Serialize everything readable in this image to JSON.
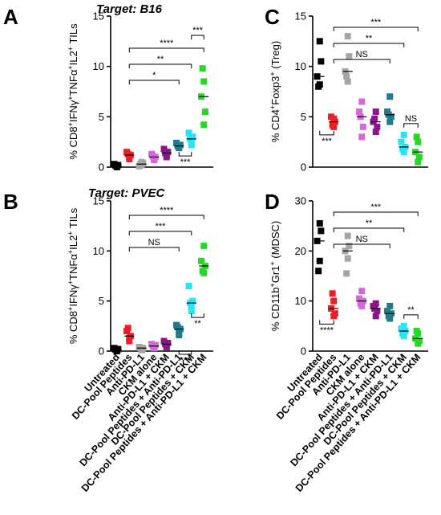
{
  "categories": [
    "Untreated",
    "DC-Pool Peptides",
    "Anti-PD-L1",
    "CKM alone",
    "Anti-PD-L1 + CKM",
    "DC-Pool Peptides + Anti-PD-L1",
    "DC-Pool Peptides + CKM",
    "DC-Pool Peptides + Anti-PD-L1 + CKM"
  ],
  "colors": [
    "#000000",
    "#ee1c24",
    "#a5a5a5",
    "#d46ad8",
    "#8b158b",
    "#1e7d8c",
    "#28e4f4",
    "#27d727"
  ],
  "chart_data": [
    {
      "panel": "A",
      "type": "scatter",
      "title": "Target: B16",
      "ylabel_parts": [
        "% CD8",
        "+",
        "IFNγ",
        "+",
        "TNFα",
        "+",
        "IL2",
        "+",
        " TILs"
      ],
      "ylim": [
        0,
        15
      ],
      "yticks": [
        "0",
        "5",
        "10",
        "15"
      ],
      "points": [
        [
          0.1,
          0.2,
          0.3,
          0.0,
          0.15
        ],
        [
          0.8,
          1.2,
          1.5,
          1.0,
          1.3
        ],
        [
          0.2,
          0.4,
          0.1,
          0.5,
          0.3
        ],
        [
          0.8,
          1.0,
          1.3,
          0.7,
          1.1
        ],
        [
          1.2,
          1.5,
          1.8,
          1.0,
          1.4
        ],
        [
          2.0,
          2.2,
          2.4,
          1.9,
          2.1
        ],
        [
          2.5,
          3.0,
          3.4,
          2.2,
          2.8
        ],
        [
          4.2,
          5.5,
          7.0,
          8.5,
          9.8
        ]
      ],
      "brackets": [
        {
          "from": 1,
          "to": 7,
          "label": "****"
        },
        {
          "from": 1,
          "to": 6,
          "label": "**"
        },
        {
          "from": 1,
          "to": 5,
          "label": "*"
        },
        {
          "from": 6,
          "to": 7,
          "label": "***"
        },
        {
          "from": 5,
          "to": 6,
          "label": "***",
          "below": true
        }
      ]
    },
    {
      "panel": "B",
      "type": "scatter",
      "title": "Target: PVEC",
      "ylabel_parts": [
        "% CD8",
        "+",
        "IFNγ",
        "+",
        "TNFα",
        "+",
        "IL2",
        "+",
        " TILs"
      ],
      "ylim": [
        0,
        15
      ],
      "yticks": [
        "0",
        "5",
        "10",
        "15"
      ],
      "points": [
        [
          0.1,
          0.2,
          0.3,
          0.0,
          0.15
        ],
        [
          1.0,
          1.5,
          2.0,
          1.3,
          2.3
        ],
        [
          0.2,
          0.3,
          0.4,
          0.1,
          0.3
        ],
        [
          0.4,
          0.6,
          0.7,
          0.3,
          0.5
        ],
        [
          0.5,
          0.8,
          1.0,
          0.4,
          0.7
        ],
        [
          1.8,
          2.2,
          2.6,
          1.6,
          2.4
        ],
        [
          4.0,
          5.0,
          6.5,
          4.5,
          4.8
        ],
        [
          7.8,
          8.5,
          9.0,
          10.5,
          8.0
        ]
      ],
      "brackets": [
        {
          "from": 1,
          "to": 7,
          "label": "****"
        },
        {
          "from": 1,
          "to": 6,
          "label": "***"
        },
        {
          "from": 1,
          "to": 5,
          "label": "NS"
        },
        {
          "from": 6,
          "to": 7,
          "label": "**",
          "below": true,
          "level": 1
        },
        {
          "from": 5,
          "to": 6,
          "label": "***",
          "below": true,
          "level": 2
        }
      ]
    },
    {
      "panel": "C",
      "type": "scatter",
      "title": "",
      "ylabel_parts": [
        "% CD4",
        "+",
        "Foxp3",
        "+",
        " (Treg)"
      ],
      "ylim": [
        0,
        15
      ],
      "yticks": [
        "0",
        "5",
        "10",
        "15"
      ],
      "points": [
        [
          12.5,
          10.5,
          9.0,
          8.2,
          8.0
        ],
        [
          4.0,
          4.5,
          5.0,
          4.8,
          4.2
        ],
        [
          13.0,
          11.0,
          9.5,
          8.5,
          9.0
        ],
        [
          3.0,
          4.0,
          5.5,
          6.5,
          5.0
        ],
        [
          3.5,
          4.0,
          4.5,
          5.5,
          4.8
        ],
        [
          4.5,
          5.0,
          5.5,
          7.0,
          5.2
        ],
        [
          1.5,
          2.0,
          2.5,
          3.2,
          1.8
        ],
        [
          0.5,
          1.0,
          1.5,
          2.5,
          3.0
        ]
      ],
      "brackets": [
        {
          "from": 1,
          "to": 7,
          "label": "***"
        },
        {
          "from": 1,
          "to": 6,
          "label": "**"
        },
        {
          "from": 1,
          "to": 5,
          "label": "NS"
        },
        {
          "from": 6,
          "to": 7,
          "label": "NS"
        },
        {
          "from": 0,
          "to": 1,
          "label": "***",
          "below": true
        }
      ]
    },
    {
      "panel": "D",
      "type": "scatter",
      "title": "",
      "ylabel_parts": [
        "% CD11b",
        "+",
        "Gr1",
        "+",
        " (MDSC)"
      ],
      "ylim": [
        0,
        30
      ],
      "yticks": [
        "0",
        "10",
        "20",
        "30"
      ],
      "points": [
        [
          25.5,
          24.0,
          22.0,
          18.0,
          16.0
        ],
        [
          7.0,
          7.5,
          8.5,
          10.0,
          11.5
        ],
        [
          23.0,
          21.0,
          20.0,
          18.5,
          15.5
        ],
        [
          9.0,
          10.0,
          10.5,
          12.0,
          9.5
        ],
        [
          7.0,
          8.0,
          9.0,
          9.5,
          8.5
        ],
        [
          6.5,
          7.5,
          8.0,
          9.0,
          7.0
        ],
        [
          3.0,
          4.0,
          4.5,
          5.0,
          3.5
        ],
        [
          1.5,
          2.0,
          2.5,
          3.5,
          4.0
        ]
      ],
      "brackets": [
        {
          "from": 1,
          "to": 7,
          "label": "***"
        },
        {
          "from": 1,
          "to": 6,
          "label": "**"
        },
        {
          "from": 1,
          "to": 5,
          "label": "NS"
        },
        {
          "from": 6,
          "to": 7,
          "label": "**"
        },
        {
          "from": 0,
          "to": 1,
          "label": "****",
          "below": true
        }
      ]
    }
  ]
}
